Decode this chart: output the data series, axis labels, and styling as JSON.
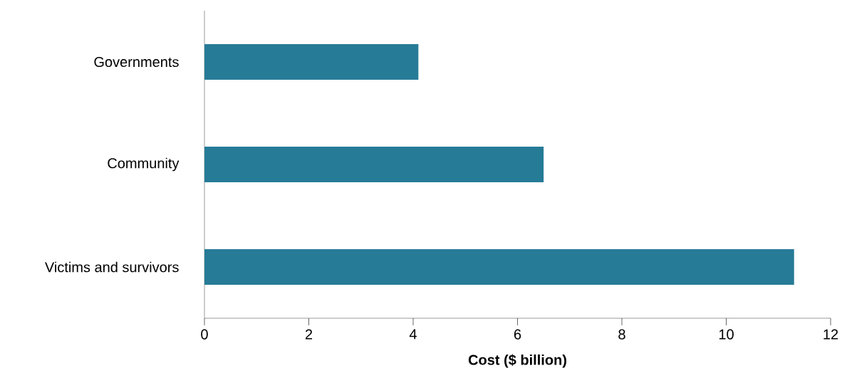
{
  "chart_data": {
    "type": "bar",
    "orientation": "horizontal",
    "xlabel": "Cost ($ billion)",
    "categories": [
      "Governments",
      "Community",
      "Victims and survivors"
    ],
    "values": [
      4.1,
      6.5,
      11.3
    ],
    "color": "#267b97",
    "xlim": [
      0,
      12
    ],
    "xticks": [
      0,
      2,
      4,
      6,
      8,
      10,
      12
    ],
    "grid": false
  }
}
